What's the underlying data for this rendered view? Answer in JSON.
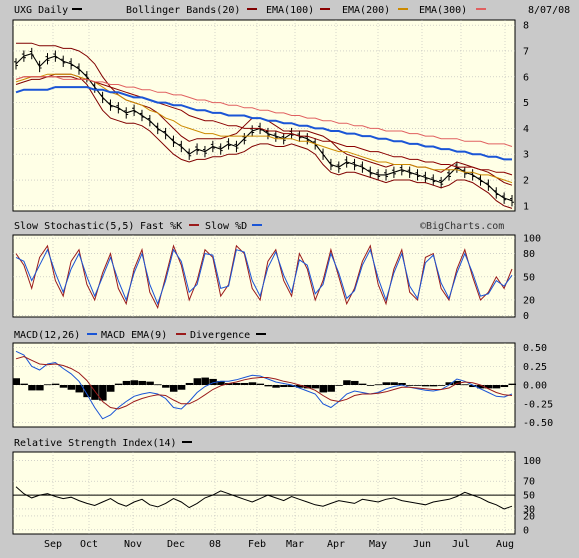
{
  "colors": {
    "plot_bg": "#ffffe6",
    "frame": "#c9c9c9",
    "grid": "#b8b8b8",
    "price": "#000000",
    "bollinger": "#800000",
    "ema100": "#8b0000",
    "ema200": "#cc8a00",
    "ema300": "#1a55d6",
    "ema_top": "#e06060",
    "fastk": "#9b1b1b",
    "slowd": "#1a55d6",
    "macd": "#1a55d6",
    "macd_ema": "#9b1b1b",
    "divergence": "#000000",
    "rsi": "#000000"
  },
  "header": {
    "symbol": "UXG Daily",
    "bollinger": "Bollinger Bands(20)",
    "ema100": "EMA(100)",
    "ema200": "EMA(200)",
    "ema300": "EMA(300)",
    "date": "8/07/08"
  },
  "watermark": "©BigCharts.com",
  "x_axis_labels": [
    "Sep",
    "Oct",
    "Nov",
    "Dec",
    "08",
    "Feb",
    "Mar",
    "Apr",
    "May",
    "Jun",
    "Jul",
    "Aug"
  ],
  "chart_data": [
    {
      "type": "line",
      "panel": "price",
      "yticks": [
        "1",
        "2",
        "3",
        "4",
        "5",
        "6",
        "7",
        "8"
      ],
      "ylim": [
        1,
        8
      ],
      "series": [
        {
          "name": "UXG Daily",
          "values": [
            6.5,
            6.8,
            6.9,
            6.4,
            6.7,
            6.8,
            6.6,
            6.5,
            6.3,
            6.0,
            5.6,
            5.2,
            4.9,
            4.8,
            4.6,
            4.7,
            4.5,
            4.3,
            4.0,
            3.8,
            3.5,
            3.3,
            3.0,
            3.2,
            3.1,
            3.3,
            3.2,
            3.4,
            3.3,
            3.6,
            3.9,
            4.0,
            3.8,
            3.7,
            3.6,
            3.8,
            3.7,
            3.6,
            3.4,
            3.0,
            2.6,
            2.5,
            2.7,
            2.6,
            2.5,
            2.3,
            2.2,
            2.2,
            2.3,
            2.4,
            2.3,
            2.2,
            2.1,
            2.0,
            1.9,
            2.2,
            2.5,
            2.3,
            2.2,
            2.0,
            1.8,
            1.5,
            1.3,
            1.2
          ]
        },
        {
          "name": "Bollinger Bands(20)",
          "values": [
            7.3,
            7.3,
            7.3,
            7.2,
            7.2,
            7.2,
            7.1,
            7.1,
            7.0,
            6.8,
            6.5,
            6.0,
            5.6,
            5.3,
            5.1,
            5.0,
            4.9,
            4.8,
            4.6,
            4.3,
            4.0,
            3.7,
            3.5,
            3.6,
            3.6,
            3.6,
            3.6,
            3.7,
            3.8,
            4.1,
            4.4,
            4.4,
            4.3,
            4.1,
            3.9,
            3.9,
            3.9,
            3.9,
            3.8,
            3.7,
            3.5,
            3.2,
            3.0,
            2.9,
            2.8,
            2.7,
            2.6,
            2.5,
            2.6,
            2.6,
            2.6,
            2.5,
            2.5,
            2.4,
            2.3,
            2.5,
            2.7,
            2.6,
            2.5,
            2.4,
            2.3,
            2.1,
            1.9,
            1.8
          ]
        },
        {
          "name": "Bollinger Bands(20) lower",
          "values": [
            5.7,
            5.8,
            5.9,
            5.9,
            6.0,
            6.1,
            6.1,
            6.1,
            6.0,
            5.7,
            5.2,
            4.7,
            4.4,
            4.3,
            4.2,
            4.2,
            4.1,
            3.9,
            3.6,
            3.3,
            3.0,
            2.8,
            2.7,
            2.8,
            2.8,
            2.9,
            2.9,
            3.0,
            3.0,
            3.1,
            3.3,
            3.4,
            3.4,
            3.3,
            3.3,
            3.4,
            3.3,
            3.2,
            3.0,
            2.6,
            2.3,
            2.2,
            2.3,
            2.3,
            2.2,
            2.1,
            2.0,
            1.9,
            2.0,
            2.0,
            2.0,
            1.9,
            1.9,
            1.8,
            1.7,
            1.8,
            2.0,
            2.0,
            1.9,
            1.7,
            1.5,
            1.2,
            1.0,
            0.9
          ]
        },
        {
          "name": "EMA(100)",
          "values": [
            5.8,
            5.9,
            6.0,
            6.0,
            6.1,
            6.1,
            6.1,
            6.1,
            6.0,
            5.9,
            5.8,
            5.6,
            5.4,
            5.3,
            5.1,
            5.0,
            4.9,
            4.7,
            4.6,
            4.4,
            4.3,
            4.1,
            4.0,
            3.9,
            3.8,
            3.8,
            3.7,
            3.7,
            3.7,
            3.7,
            3.7,
            3.7,
            3.7,
            3.6,
            3.6,
            3.6,
            3.5,
            3.5,
            3.4,
            3.3,
            3.2,
            3.1,
            3.1,
            3.0,
            2.9,
            2.8,
            2.7,
            2.7,
            2.6,
            2.6,
            2.6,
            2.5,
            2.5,
            2.4,
            2.4,
            2.4,
            2.4,
            2.3,
            2.3,
            2.2,
            2.2,
            2.1,
            2.0,
            1.9
          ]
        },
        {
          "name": "EMA(200)",
          "values": [
            5.9,
            6.0,
            6.0,
            6.0,
            6.0,
            6.0,
            6.0,
            6.0,
            5.9,
            5.9,
            5.8,
            5.7,
            5.6,
            5.5,
            5.4,
            5.3,
            5.2,
            5.1,
            5.0,
            4.9,
            4.8,
            4.7,
            4.5,
            4.4,
            4.3,
            4.3,
            4.2,
            4.1,
            4.1,
            4.0,
            4.0,
            4.0,
            3.9,
            3.9,
            3.8,
            3.8,
            3.7,
            3.7,
            3.6,
            3.5,
            3.5,
            3.4,
            3.3,
            3.3,
            3.2,
            3.1,
            3.1,
            3.0,
            2.9,
            2.9,
            2.8,
            2.8,
            2.7,
            2.7,
            2.6,
            2.6,
            2.5,
            2.5,
            2.5,
            2.4,
            2.4,
            2.3,
            2.3,
            2.2
          ]
        },
        {
          "name": "EMA(300)",
          "values": [
            5.4,
            5.5,
            5.5,
            5.5,
            5.5,
            5.6,
            5.6,
            5.6,
            5.6,
            5.6,
            5.5,
            5.5,
            5.4,
            5.4,
            5.3,
            5.2,
            5.2,
            5.1,
            5.0,
            5.0,
            4.9,
            4.9,
            4.8,
            4.7,
            4.7,
            4.6,
            4.6,
            4.5,
            4.5,
            4.5,
            4.4,
            4.4,
            4.3,
            4.3,
            4.2,
            4.2,
            4.1,
            4.1,
            4.0,
            4.0,
            3.9,
            3.9,
            3.8,
            3.8,
            3.7,
            3.7,
            3.6,
            3.6,
            3.5,
            3.5,
            3.4,
            3.4,
            3.3,
            3.3,
            3.2,
            3.2,
            3.1,
            3.1,
            3.0,
            3.0,
            2.9,
            2.9,
            2.8,
            2.8
          ]
        },
        {
          "name": "EMA(300) upper",
          "values": [
            5.9,
            6.0,
            6.0,
            6.0,
            6.0,
            6.0,
            5.9,
            5.9,
            5.9,
            5.9,
            5.8,
            5.8,
            5.7,
            5.7,
            5.6,
            5.6,
            5.5,
            5.5,
            5.4,
            5.4,
            5.3,
            5.3,
            5.2,
            5.1,
            5.1,
            5.0,
            5.0,
            4.9,
            4.9,
            4.8,
            4.8,
            4.7,
            4.7,
            4.6,
            4.6,
            4.5,
            4.5,
            4.4,
            4.4,
            4.3,
            4.3,
            4.2,
            4.2,
            4.1,
            4.1,
            4.0,
            4.0,
            3.9,
            3.9,
            3.9,
            3.8,
            3.8,
            3.7,
            3.7,
            3.6,
            3.6,
            3.6,
            3.5,
            3.5,
            3.5,
            3.4,
            3.4,
            3.4,
            3.3
          ]
        }
      ]
    },
    {
      "type": "line",
      "panel": "stochastic",
      "title": "Slow Stochastic(5,5)",
      "legend": [
        "Fast %K",
        "Slow %D"
      ],
      "yticks": [
        "0",
        "20",
        "50",
        "80",
        "100"
      ],
      "ylim": [
        0,
        100
      ],
      "series": [
        {
          "name": "Fast %K",
          "values": [
            80,
            65,
            35,
            75,
            90,
            45,
            25,
            70,
            85,
            40,
            20,
            55,
            80,
            35,
            15,
            60,
            85,
            30,
            10,
            50,
            90,
            65,
            20,
            45,
            85,
            75,
            25,
            40,
            90,
            80,
            35,
            20,
            70,
            85,
            45,
            25,
            80,
            60,
            20,
            45,
            85,
            50,
            15,
            35,
            70,
            90,
            40,
            15,
            60,
            85,
            30,
            20,
            75,
            80,
            35,
            20,
            60,
            85,
            50,
            20,
            30,
            50,
            35,
            60
          ]
        },
        {
          "name": "Slow %D",
          "values": [
            75,
            70,
            45,
            65,
            85,
            55,
            30,
            60,
            80,
            50,
            25,
            50,
            75,
            45,
            20,
            55,
            80,
            40,
            15,
            45,
            85,
            70,
            30,
            40,
            80,
            78,
            35,
            38,
            85,
            82,
            45,
            25,
            62,
            82,
            52,
            30,
            72,
            65,
            28,
            40,
            80,
            55,
            22,
            32,
            65,
            85,
            48,
            20,
            55,
            80,
            38,
            22,
            68,
            78,
            42,
            22,
            55,
            80,
            55,
            25,
            28,
            45,
            38,
            52
          ]
        }
      ]
    },
    {
      "type": "line",
      "panel": "macd",
      "title": "MACD(12,26)",
      "legend": [
        "MACD EMA(9)",
        "Divergence"
      ],
      "yticks": [
        "-0.50",
        "-0.25",
        "0.00",
        "0.25",
        "0.50"
      ],
      "ylim": [
        -0.5,
        0.5
      ],
      "series": [
        {
          "name": "MACD(12,26)",
          "values": [
            0.45,
            0.4,
            0.25,
            0.2,
            0.28,
            0.3,
            0.22,
            0.15,
            0.05,
            -0.12,
            -0.3,
            -0.45,
            -0.4,
            -0.3,
            -0.22,
            -0.15,
            -0.12,
            -0.1,
            -0.12,
            -0.18,
            -0.3,
            -0.32,
            -0.22,
            -0.1,
            -0.02,
            0.03,
            0.05,
            0.05,
            0.07,
            0.1,
            0.13,
            0.12,
            0.08,
            0.04,
            0.02,
            0.0,
            -0.04,
            -0.08,
            -0.12,
            -0.25,
            -0.3,
            -0.22,
            -0.12,
            -0.08,
            -0.1,
            -0.12,
            -0.1,
            -0.05,
            -0.02,
            0.0,
            -0.03,
            -0.05,
            -0.07,
            -0.08,
            -0.06,
            0.0,
            0.08,
            0.05,
            0.0,
            -0.05,
            -0.1,
            -0.15,
            -0.16,
            -0.12
          ]
        },
        {
          "name": "MACD EMA(9)",
          "values": [
            0.35,
            0.38,
            0.33,
            0.28,
            0.27,
            0.28,
            0.26,
            0.22,
            0.16,
            0.06,
            -0.08,
            -0.22,
            -0.3,
            -0.32,
            -0.28,
            -0.22,
            -0.18,
            -0.15,
            -0.13,
            -0.14,
            -0.2,
            -0.25,
            -0.25,
            -0.2,
            -0.13,
            -0.06,
            -0.01,
            0.02,
            0.04,
            0.07,
            0.09,
            0.1,
            0.1,
            0.08,
            0.05,
            0.03,
            0.0,
            -0.03,
            -0.07,
            -0.14,
            -0.2,
            -0.22,
            -0.19,
            -0.14,
            -0.12,
            -0.12,
            -0.11,
            -0.09,
            -0.06,
            -0.03,
            -0.03,
            -0.04,
            -0.05,
            -0.06,
            -0.06,
            -0.04,
            0.02,
            0.04,
            0.03,
            0.0,
            -0.05,
            -0.1,
            -0.13,
            -0.14
          ]
        }
      ]
    },
    {
      "type": "line",
      "panel": "rsi",
      "title": "Relative Strength Index(14)",
      "yticks": [
        "0",
        "20",
        "30",
        "50",
        "70",
        "100"
      ],
      "ylim": [
        0,
        100
      ],
      "guides": [
        50
      ],
      "series": [
        {
          "name": "Relative Strength Index(14)",
          "values": [
            62,
            52,
            46,
            50,
            52,
            48,
            45,
            47,
            42,
            38,
            35,
            40,
            45,
            38,
            34,
            40,
            44,
            36,
            33,
            38,
            45,
            40,
            32,
            38,
            46,
            50,
            56,
            52,
            48,
            44,
            40,
            45,
            50,
            46,
            42,
            48,
            44,
            40,
            36,
            34,
            38,
            42,
            40,
            38,
            44,
            42,
            40,
            44,
            46,
            42,
            40,
            38,
            36,
            40,
            42,
            44,
            48,
            54,
            50,
            46,
            40,
            36,
            30,
            34
          ]
        }
      ]
    }
  ]
}
